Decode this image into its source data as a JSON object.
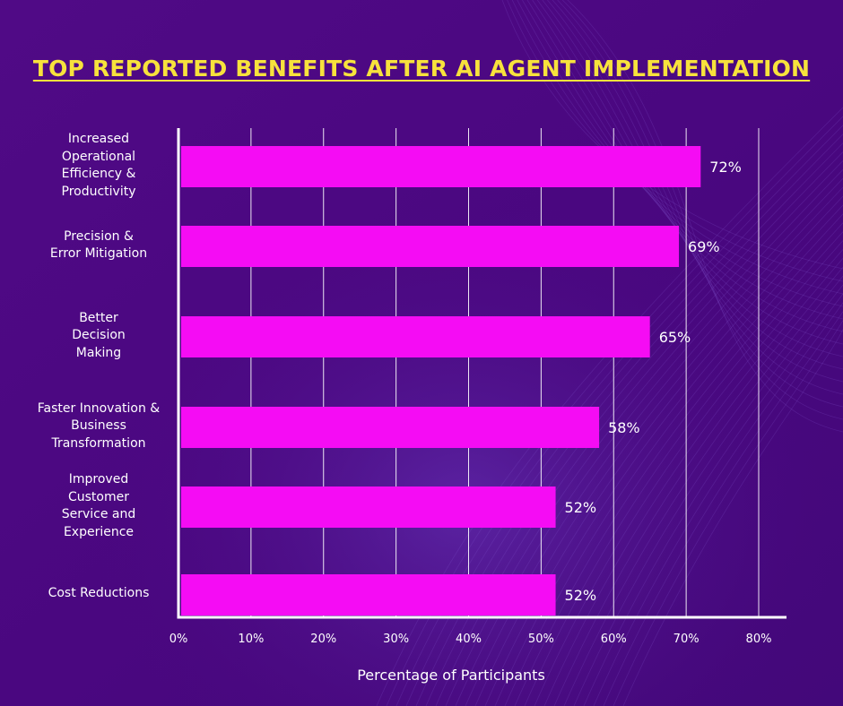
{
  "colors": {
    "background": "#4b087f",
    "bar": "#f50cf4",
    "title": "#f7e23c",
    "text": "#ffffff",
    "grid": "#ffffff"
  },
  "chart_data": {
    "type": "bar",
    "orientation": "horizontal",
    "title": "TOP REPORTED BENEFITS AFTER AI AGENT IMPLEMENTATION",
    "xlabel": "Percentage of Participants",
    "ylabel": "",
    "xlim": [
      0,
      80
    ],
    "xticks": [
      "0%",
      "10%",
      "20%",
      "30%",
      "40%",
      "50%",
      "60%",
      "70%",
      "80%"
    ],
    "grid": "vertical",
    "legend": "none",
    "categories": [
      "Increased Operational Efficiency & Productivity",
      "Precision & Error Mitigation",
      "Better Decision Making",
      "Faster Innovation & Business Transformation",
      "Improved Customer Service and Experience",
      "Cost Reductions"
    ],
    "category_lines": [
      [
        "Increased",
        "Operational",
        "Efficiency &",
        "Productivity"
      ],
      [
        "Precision &",
        "Error Mitigation"
      ],
      [
        "Better",
        "Decision",
        "Making"
      ],
      [
        "Faster Innovation &",
        "Business",
        "Transformation"
      ],
      [
        "Improved",
        "Customer",
        "Service and",
        "Experience"
      ],
      [
        "Cost Reductions"
      ]
    ],
    "values": [
      72,
      69,
      65,
      58,
      52,
      52
    ],
    "value_labels": [
      "72%",
      "69%",
      "65%",
      "58%",
      "52%",
      "52%"
    ]
  }
}
